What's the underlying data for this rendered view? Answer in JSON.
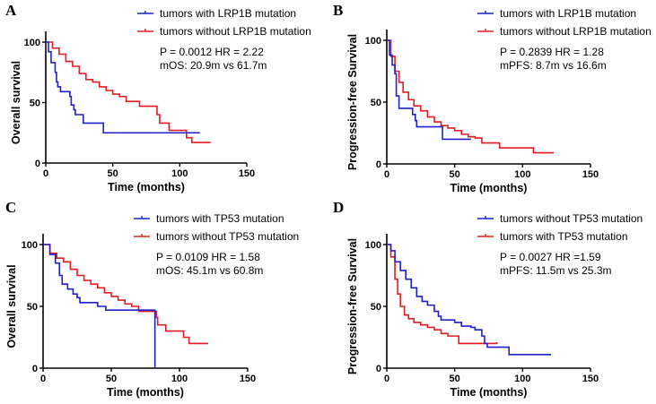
{
  "colors": {
    "blue": "#1f1fcc",
    "red": "#e51b23"
  },
  "chart_data": [
    {
      "type": "line",
      "panel": "A",
      "xlabel": "Time (months)",
      "ylabel": "Overall survival",
      "xlim": [
        0,
        150
      ],
      "ylim": [
        0,
        100
      ],
      "xticks": [
        0,
        50,
        100,
        150
      ],
      "yticks": [
        0,
        50,
        100
      ],
      "stats": [
        "P = 0.0012  HR = 2.22",
        "mOS: 20.9m vs 61.7m"
      ],
      "series": [
        {
          "name": "tumors with LRP1B mutation",
          "color": "blue",
          "points": [
            [
              0,
              100
            ],
            [
              2,
              92
            ],
            [
              4,
              83
            ],
            [
              7,
              75
            ],
            [
              8,
              67
            ],
            [
              9,
              63
            ],
            [
              11,
              59
            ],
            [
              18,
              55
            ],
            [
              19,
              48
            ],
            [
              21,
              44
            ],
            [
              22,
              40
            ],
            [
              28,
              33
            ],
            [
              43,
              25
            ],
            [
              115,
              25
            ]
          ]
        },
        {
          "name": "tumors without LRP1B mutation",
          "color": "red",
          "points": [
            [
              0,
              100
            ],
            [
              5,
              95
            ],
            [
              10,
              90
            ],
            [
              15,
              84
            ],
            [
              20,
              80
            ],
            [
              25,
              74
            ],
            [
              30,
              69
            ],
            [
              35,
              67
            ],
            [
              40,
              63
            ],
            [
              45,
              60
            ],
            [
              50,
              57
            ],
            [
              55,
              55
            ],
            [
              60,
              51
            ],
            [
              70,
              47
            ],
            [
              82,
              47
            ],
            [
              83,
              40
            ],
            [
              85,
              33
            ],
            [
              92,
              27
            ],
            [
              104,
              27
            ],
            [
              105,
              21
            ],
            [
              109,
              17
            ],
            [
              123,
              17
            ]
          ]
        }
      ]
    },
    {
      "type": "line",
      "panel": "B",
      "xlabel": "Time (months)",
      "ylabel": "Progression-free Survival",
      "xlim": [
        0,
        150
      ],
      "ylim": [
        0,
        100
      ],
      "xticks": [
        0,
        50,
        100,
        150
      ],
      "yticks": [
        0,
        50,
        100
      ],
      "stats": [
        "P = 0.2839 HR = 1.28",
        "mPFS: 8.7m vs 16.6m"
      ],
      "series": [
        {
          "name": "tumors with LRP1B mutation",
          "color": "blue",
          "points": [
            [
              0,
              100
            ],
            [
              2,
              88
            ],
            [
              4,
              80
            ],
            [
              6,
              73
            ],
            [
              7,
              55
            ],
            [
              9,
              45
            ],
            [
              18,
              45
            ],
            [
              19,
              40
            ],
            [
              21,
              35
            ],
            [
              22,
              30
            ],
            [
              41,
              30
            ],
            [
              41,
              20
            ],
            [
              62,
              20
            ]
          ]
        },
        {
          "name": "tumors without LRP1B mutation",
          "color": "red",
          "points": [
            [
              0,
              100
            ],
            [
              3,
              87
            ],
            [
              6,
              75
            ],
            [
              9,
              66
            ],
            [
              12,
              58
            ],
            [
              16,
              52
            ],
            [
              20,
              47
            ],
            [
              25,
              43
            ],
            [
              30,
              38
            ],
            [
              35,
              34
            ],
            [
              40,
              31
            ],
            [
              45,
              29
            ],
            [
              50,
              27
            ],
            [
              55,
              24
            ],
            [
              60,
              22
            ],
            [
              65,
              21
            ],
            [
              70,
              17
            ],
            [
              80,
              17
            ],
            [
              83,
              13
            ],
            [
              108,
              13
            ],
            [
              108,
              9
            ],
            [
              123,
              9
            ]
          ]
        }
      ]
    },
    {
      "type": "line",
      "panel": "C",
      "xlabel": "Time (months)",
      "ylabel": "Overall survival",
      "xlim": [
        0,
        150
      ],
      "ylim": [
        0,
        100
      ],
      "xticks": [
        0,
        50,
        100,
        150
      ],
      "yticks": [
        0,
        50,
        100
      ],
      "stats": [
        "P = 0.0109  HR = 1.58",
        "mOS: 45.1m vs 60.8m"
      ],
      "series": [
        {
          "name": "tumors with TP53 mutation",
          "color": "blue",
          "points": [
            [
              0,
              100
            ],
            [
              5,
              92
            ],
            [
              9,
              85
            ],
            [
              12,
              75
            ],
            [
              14,
              68
            ],
            [
              18,
              64
            ],
            [
              22,
              60
            ],
            [
              25,
              57
            ],
            [
              27,
              53
            ],
            [
              38,
              53
            ],
            [
              40,
              50
            ],
            [
              45,
              50
            ],
            [
              46,
              47
            ],
            [
              82,
              47
            ],
            [
              82,
              0
            ]
          ]
        },
        {
          "name": "tumors without TP53 mutation",
          "color": "red",
          "points": [
            [
              0,
              100
            ],
            [
              5,
              93
            ],
            [
              10,
              89
            ],
            [
              15,
              86
            ],
            [
              20,
              80
            ],
            [
              25,
              75
            ],
            [
              30,
              71
            ],
            [
              35,
              68
            ],
            [
              40,
              65
            ],
            [
              45,
              61
            ],
            [
              50,
              58
            ],
            [
              55,
              55
            ],
            [
              60,
              52
            ],
            [
              65,
              50
            ],
            [
              70,
              46
            ],
            [
              82,
              46
            ],
            [
              83,
              41
            ],
            [
              84,
              35
            ],
            [
              90,
              30
            ],
            [
              100,
              30
            ],
            [
              103,
              25
            ],
            [
              107,
              20
            ],
            [
              121,
              20
            ]
          ]
        }
      ]
    },
    {
      "type": "line",
      "panel": "D",
      "xlabel": "Time (months)",
      "ylabel": "Progression-free Survival",
      "xlim": [
        0,
        150
      ],
      "ylim": [
        0,
        100
      ],
      "xticks": [
        0,
        50,
        100,
        150
      ],
      "yticks": [
        0,
        50,
        100
      ],
      "stats": [
        "P = 0.0027 HR =1.59",
        "mPFS: 11.5m vs 25.3m"
      ],
      "series": [
        {
          "name": "tumors without TP53 mutation",
          "color": "blue",
          "points": [
            [
              0,
              100
            ],
            [
              3,
              95
            ],
            [
              6,
              86
            ],
            [
              10,
              79
            ],
            [
              14,
              72
            ],
            [
              18,
              65
            ],
            [
              22,
              58
            ],
            [
              26,
              54
            ],
            [
              30,
              51
            ],
            [
              35,
              46
            ],
            [
              38,
              42
            ],
            [
              40,
              39
            ],
            [
              50,
              37
            ],
            [
              55,
              34
            ],
            [
              62,
              33
            ],
            [
              65,
              31
            ],
            [
              70,
              26
            ],
            [
              72,
              20
            ],
            [
              74,
              17
            ],
            [
              90,
              17
            ],
            [
              90,
              11
            ],
            [
              121,
              11
            ]
          ]
        },
        {
          "name": "tumors with TP53 mutation",
          "color": "red",
          "points": [
            [
              0,
              100
            ],
            [
              3,
              90
            ],
            [
              6,
              72
            ],
            [
              8,
              60
            ],
            [
              10,
              50
            ],
            [
              13,
              43
            ],
            [
              16,
              40
            ],
            [
              20,
              37
            ],
            [
              25,
              35
            ],
            [
              30,
              33
            ],
            [
              35,
              31
            ],
            [
              40,
              28
            ],
            [
              45,
              26
            ],
            [
              53,
              26
            ],
            [
              53,
              20
            ],
            [
              70,
              20
            ],
            [
              81,
              21
            ]
          ]
        }
      ]
    }
  ]
}
